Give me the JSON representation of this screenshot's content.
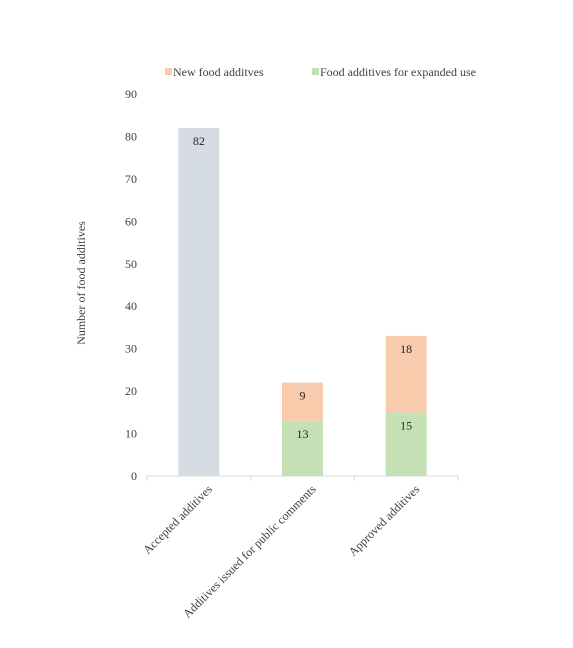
{
  "chart_data": {
    "type": "bar",
    "stacked": true,
    "title": "",
    "xlabel": "",
    "ylabel": "Number of food additives",
    "ylim": [
      0,
      90
    ],
    "yticks": [
      0,
      10,
      20,
      30,
      40,
      50,
      60,
      70,
      80,
      90
    ],
    "grid": false,
    "legend_position": "top",
    "categories": [
      "Accepted additives",
      "Additives issued for public comments",
      "Approved additives"
    ],
    "series": [
      {
        "name": "",
        "color": "#d6dce4",
        "values": [
          82,
          null,
          null
        ],
        "show_in_legend": false
      },
      {
        "name": "Food additives for expanded use",
        "color": "#c5e0b4",
        "values": [
          null,
          13,
          15
        ],
        "show_in_legend": true
      },
      {
        "name": "New food additves",
        "color": "#f8cbad",
        "values": [
          null,
          9,
          18
        ],
        "show_in_legend": true
      }
    ],
    "legend_order": [
      "New food additves",
      "Food additives for expanded use"
    ]
  }
}
